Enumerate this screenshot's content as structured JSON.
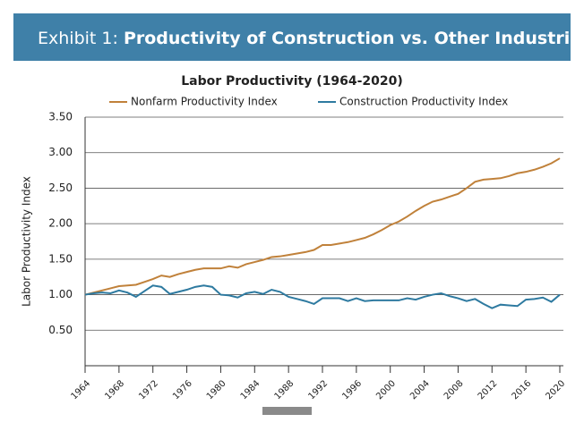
{
  "chart_data": {
    "type": "line",
    "header_prefix": "Exhibit 1:",
    "header": "Productivity of Construction vs. Other Industries",
    "title": "Labor Productivity (1964-2020)",
    "y_label": "Labor Productivity Index",
    "x": [
      1964,
      1965,
      1966,
      1967,
      1968,
      1969,
      1970,
      1971,
      1972,
      1973,
      1974,
      1975,
      1976,
      1977,
      1978,
      1979,
      1980,
      1981,
      1982,
      1983,
      1984,
      1985,
      1986,
      1987,
      1988,
      1989,
      1990,
      1991,
      1992,
      1993,
      1994,
      1995,
      1996,
      1997,
      1998,
      1999,
      2000,
      2001,
      2002,
      2003,
      2004,
      2005,
      2006,
      2007,
      2008,
      2009,
      2010,
      2011,
      2012,
      2013,
      2014,
      2015,
      2016,
      2017,
      2018,
      2019,
      2020
    ],
    "series": [
      {
        "name": "Nonfarm Productivity Index",
        "color": "#c0813a",
        "values": [
          1.0,
          1.03,
          1.06,
          1.09,
          1.12,
          1.13,
          1.14,
          1.18,
          1.22,
          1.27,
          1.25,
          1.29,
          1.32,
          1.35,
          1.37,
          1.37,
          1.37,
          1.4,
          1.38,
          1.43,
          1.46,
          1.49,
          1.53,
          1.54,
          1.56,
          1.58,
          1.6,
          1.63,
          1.7,
          1.7,
          1.72,
          1.74,
          1.77,
          1.8,
          1.85,
          1.91,
          1.98,
          2.03,
          2.1,
          2.18,
          2.25,
          2.31,
          2.34,
          2.38,
          2.42,
          2.5,
          2.59,
          2.62,
          2.63,
          2.64,
          2.67,
          2.71,
          2.73,
          2.76,
          2.8,
          2.85,
          2.92
        ]
      },
      {
        "name": "Construction Productivity Index",
        "color": "#2e7aa0",
        "values": [
          1.0,
          1.02,
          1.03,
          1.02,
          1.06,
          1.03,
          0.97,
          1.05,
          1.13,
          1.11,
          1.01,
          1.04,
          1.07,
          1.11,
          1.13,
          1.11,
          1.0,
          0.99,
          0.96,
          1.02,
          1.04,
          1.01,
          1.07,
          1.04,
          0.97,
          0.94,
          0.91,
          0.87,
          0.95,
          0.95,
          0.95,
          0.91,
          0.95,
          0.91,
          0.92,
          0.92,
          0.92,
          0.92,
          0.95,
          0.93,
          0.97,
          1.0,
          1.02,
          0.98,
          0.95,
          0.91,
          0.94,
          0.87,
          0.81,
          0.86,
          0.85,
          0.84,
          0.93,
          0.94,
          0.96,
          0.9,
          1.0
        ]
      }
    ],
    "xlim": [
      1964,
      2020
    ],
    "xticks": [
      1964,
      1968,
      1972,
      1976,
      1980,
      1984,
      1988,
      1992,
      1996,
      2000,
      2004,
      2008,
      2012,
      2016,
      2020
    ],
    "ylim": [
      0,
      3.5
    ],
    "yticks": [
      {
        "value": 0.5,
        "label": "0.50"
      },
      {
        "value": 1.0,
        "label": "1.00"
      },
      {
        "value": 1.5,
        "label": "1.50"
      },
      {
        "value": 2.0,
        "label": "2.00"
      },
      {
        "value": 2.5,
        "label": "2.50"
      },
      {
        "value": 3.0,
        "label": "3.00"
      },
      {
        "value": 3.5,
        "label": "3.50"
      }
    ],
    "grid": true
  }
}
